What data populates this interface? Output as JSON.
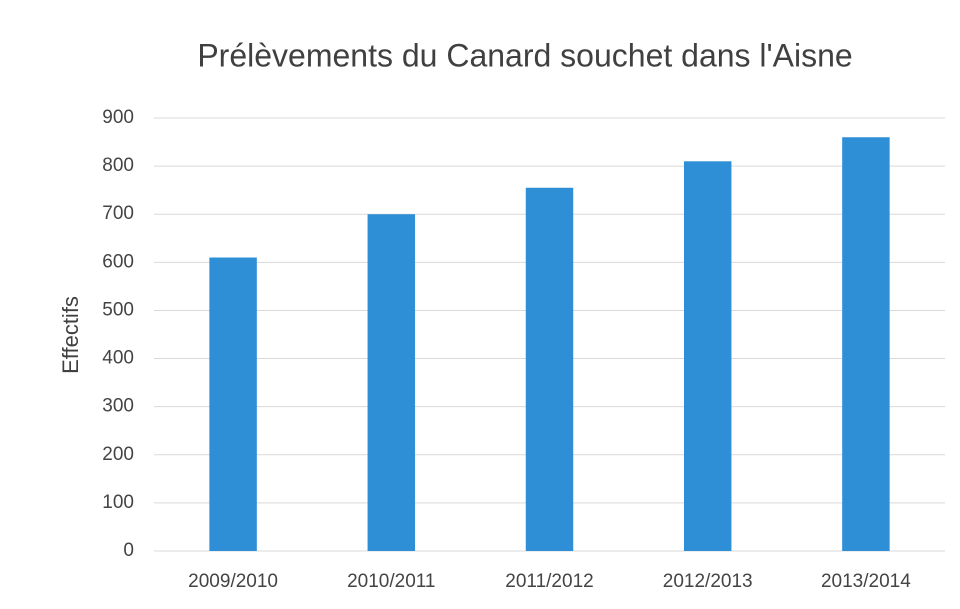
{
  "chart_data": {
    "type": "bar",
    "title": "Prélèvements du Canard souchet dans l'Aisne",
    "y_label": "Effectifs",
    "categories": [
      "2009/2010",
      "2010/2011",
      "2011/2012",
      "2012/2013",
      "2013/2014"
    ],
    "values": [
      610,
      700,
      755,
      810,
      860
    ],
    "color": "#2e8fd6",
    "ylim": [
      0,
      900
    ],
    "yticks": [
      0,
      100,
      200,
      300,
      400,
      500,
      600,
      700,
      800,
      900
    ],
    "grid": true
  }
}
